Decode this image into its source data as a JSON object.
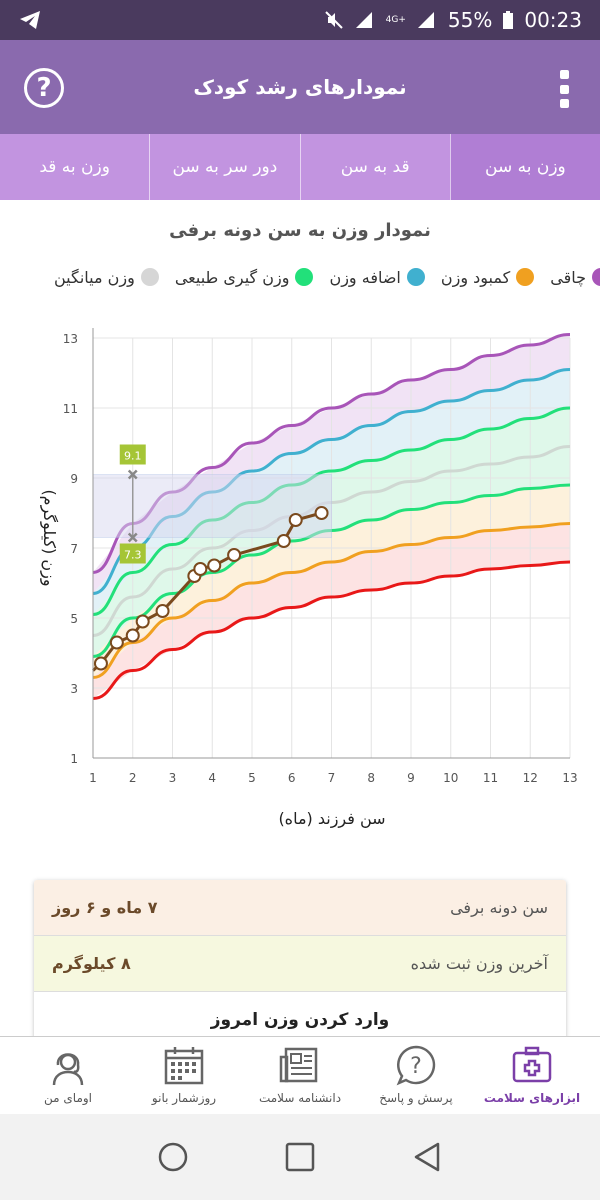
{
  "status": {
    "battery": "55%",
    "time": "00:23",
    "network": "4G+"
  },
  "app": {
    "title": "نمودارهای رشد کودک",
    "help_icon": "help-circle-icon",
    "menu_icon": "overflow-menu-icon"
  },
  "tabs": [
    {
      "label": "وزن به سن",
      "active": true
    },
    {
      "label": "قد به سن",
      "active": false
    },
    {
      "label": "دور سر به سن",
      "active": false
    },
    {
      "label": "وزن به قد",
      "active": false
    }
  ],
  "chart_title": "نمودار وزن به سن دونه برفی",
  "legend": [
    {
      "label": "چاقی",
      "color": "#a855b8"
    },
    {
      "label": "کمبود وزن",
      "color": "#f0a020"
    },
    {
      "label": "اضافه وزن",
      "color": "#40b0cf"
    },
    {
      "label": "وزن گیری طبیعی",
      "color": "#22e07a"
    },
    {
      "label": "وزن میانگین",
      "color": "#d6d6d6"
    }
  ],
  "chart_data": {
    "type": "line",
    "ylabel": "وزن (کیلوگرم)",
    "xlabel": "سن فرزند (ماه)",
    "xlim": [
      1,
      13
    ],
    "ylim": [
      1,
      13
    ],
    "x_ticks": [
      "1",
      "2",
      "3",
      "4",
      "5",
      "6",
      "7",
      "8",
      "9",
      "10",
      "11",
      "12",
      "13"
    ],
    "y_ticks": [
      "1",
      "3",
      "5",
      "7",
      "9",
      "11",
      "13"
    ],
    "x": [
      1,
      2,
      3,
      4,
      5,
      6,
      7,
      8,
      9,
      10,
      11,
      12,
      13
    ],
    "reference_series": [
      {
        "key": "obese",
        "color": "#a855b8",
        "values": [
          6.3,
          7.7,
          8.6,
          9.3,
          10.0,
          10.5,
          11.0,
          11.4,
          11.8,
          12.1,
          12.5,
          12.8,
          13.1
        ]
      },
      {
        "key": "overweight",
        "color": "#40b0cf",
        "values": [
          5.7,
          7.0,
          7.9,
          8.6,
          9.2,
          9.7,
          10.1,
          10.5,
          10.9,
          11.2,
          11.5,
          11.8,
          12.1
        ]
      },
      {
        "key": "normal_high",
        "color": "#22e07a",
        "values": [
          5.1,
          6.3,
          7.1,
          7.8,
          8.3,
          8.8,
          9.2,
          9.5,
          9.8,
          10.1,
          10.4,
          10.7,
          11.0
        ]
      },
      {
        "key": "average",
        "color": "#cfd8d2",
        "values": [
          4.5,
          5.6,
          6.4,
          7.0,
          7.5,
          7.9,
          8.3,
          8.6,
          8.9,
          9.2,
          9.4,
          9.6,
          9.9
        ]
      },
      {
        "key": "normal_low",
        "color": "#22e07a",
        "values": [
          3.9,
          5.0,
          5.7,
          6.3,
          6.8,
          7.2,
          7.5,
          7.8,
          8.1,
          8.3,
          8.5,
          8.7,
          8.8
        ]
      },
      {
        "key": "underweight",
        "color": "#f0a020",
        "values": [
          3.3,
          4.3,
          5.0,
          5.5,
          6.0,
          6.3,
          6.6,
          6.9,
          7.1,
          7.3,
          7.5,
          7.6,
          7.7
        ]
      },
      {
        "key": "severe",
        "color": "#e81818",
        "values": [
          2.7,
          3.5,
          4.1,
          4.6,
          5.0,
          5.3,
          5.6,
          5.8,
          6.0,
          6.2,
          6.4,
          6.5,
          6.6
        ]
      }
    ],
    "child_series": {
      "color": "#7a4a1e",
      "points": [
        [
          1.2,
          3.7
        ],
        [
          1.6,
          4.3
        ],
        [
          2.0,
          4.5
        ],
        [
          2.25,
          4.9
        ],
        [
          2.75,
          5.2
        ],
        [
          3.55,
          6.2
        ],
        [
          3.7,
          6.4
        ],
        [
          4.05,
          6.5
        ],
        [
          4.55,
          6.8
        ],
        [
          5.8,
          7.2
        ],
        [
          6.1,
          7.8
        ],
        [
          6.75,
          8.0
        ]
      ],
      "start": [
        1.0,
        3.5
      ]
    },
    "marker": {
      "x": 2,
      "upper_value": 9.1,
      "lower_value": 7.3,
      "upper_label": "9.1",
      "lower_label": "7.3"
    }
  },
  "info": {
    "age_label": "سن دونه برفی",
    "age_value": "۷ ماه و ۶ روز",
    "weight_label": "آخرین وزن ثبت شده",
    "weight_value": "۸ کیلوگرم",
    "enter_label": "وارد کردن وزن امروز"
  },
  "bottom_nav": [
    {
      "label": "ابزارهای سلامت",
      "icon": "medical-kit-icon",
      "active": true
    },
    {
      "label": "پرسش و پاسخ",
      "icon": "question-bubble-icon",
      "active": false
    },
    {
      "label": "دانشنامه سلامت",
      "icon": "newspaper-icon",
      "active": false
    },
    {
      "label": "روزشمار بانو",
      "icon": "calendar-icon",
      "active": false
    },
    {
      "label": "اومای من",
      "icon": "woman-avatar-icon",
      "active": false
    }
  ]
}
